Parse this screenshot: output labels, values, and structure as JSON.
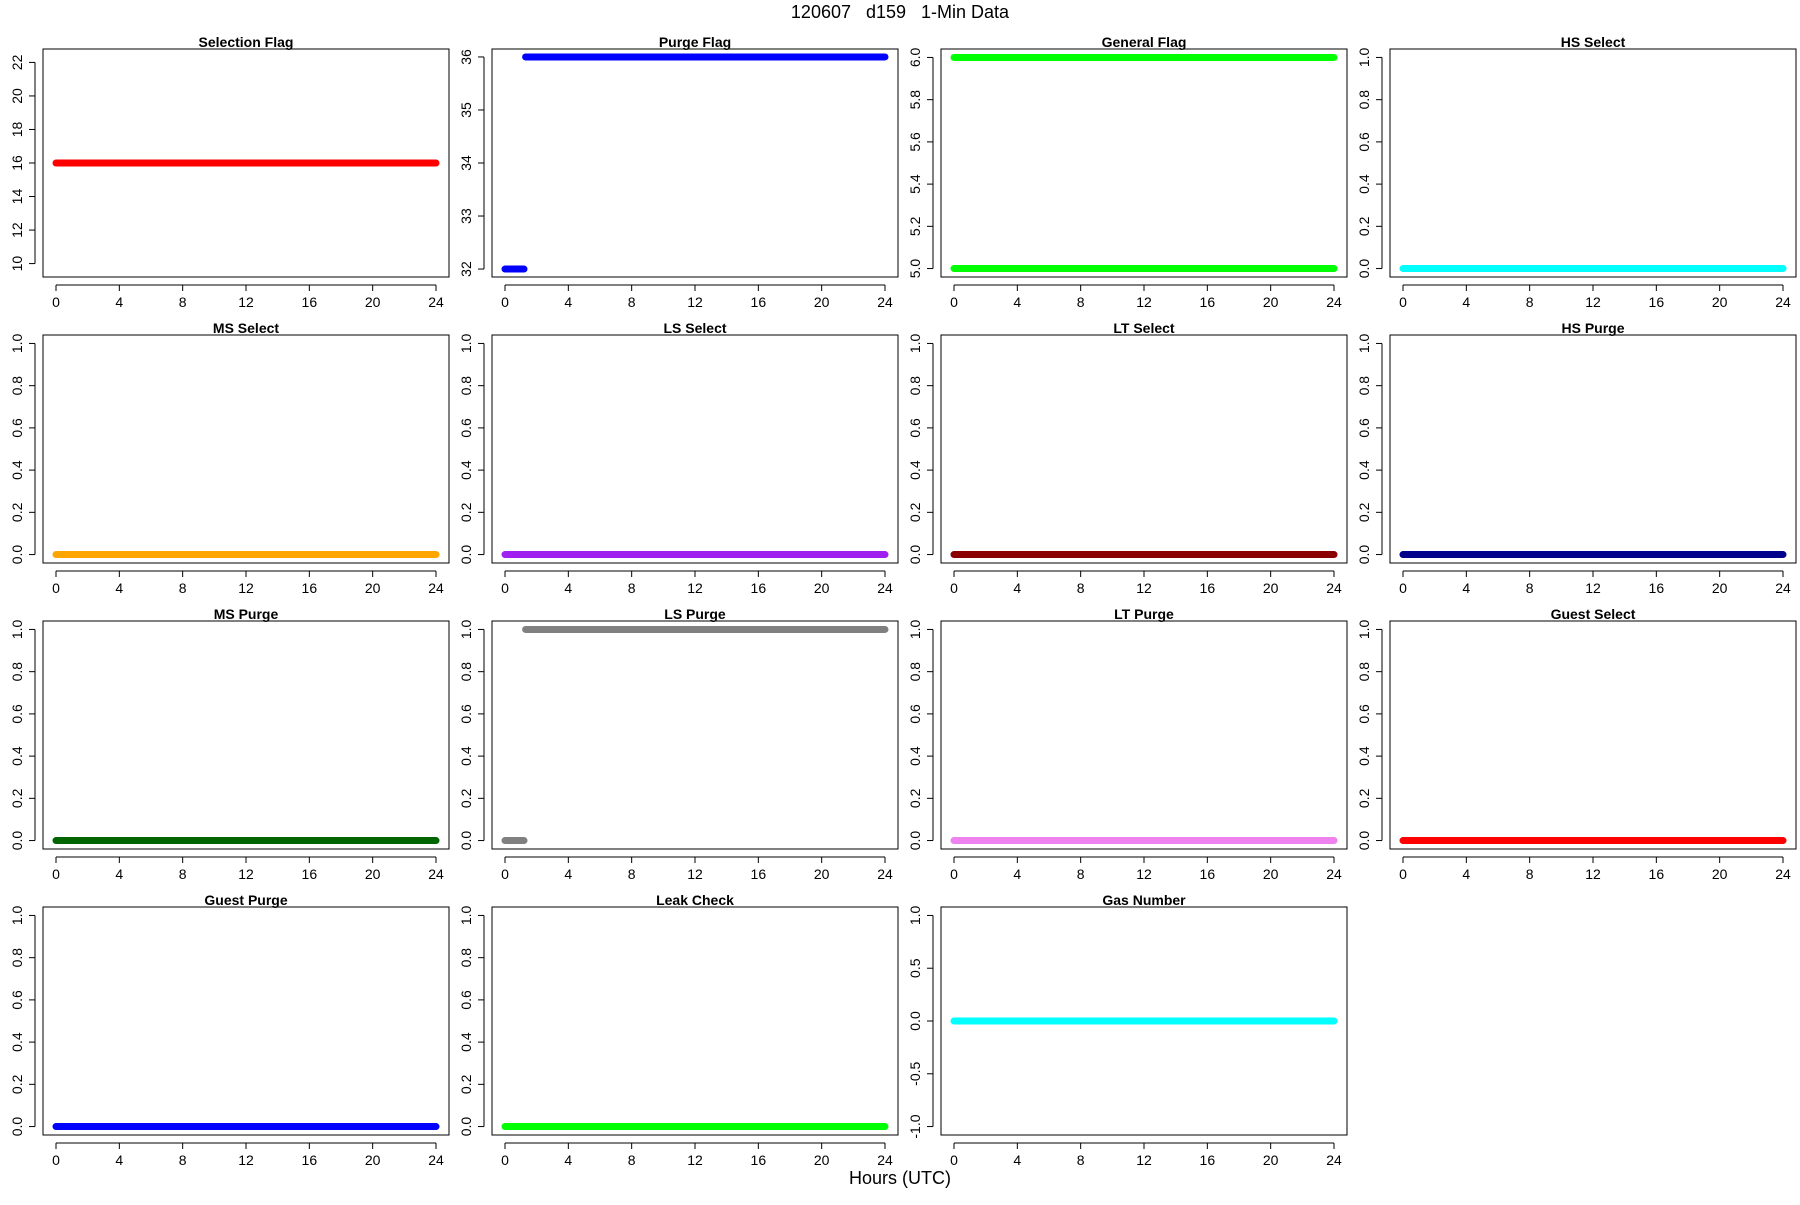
{
  "figure": {
    "title": "120607   d159   1-Min Data",
    "xlabel": "Hours (UTC)"
  },
  "chart_data": [
    {
      "type": "scatter",
      "title": "Selection Flag",
      "color": "#ff0000",
      "xlim": [
        0,
        24
      ],
      "ylim": [
        9.2,
        22.8
      ],
      "xticks": [
        0,
        4,
        8,
        12,
        16,
        20,
        24
      ],
      "yticks": [
        10,
        12,
        14,
        16,
        18,
        20,
        22
      ],
      "segments": [
        {
          "x": [
            0,
            24
          ],
          "y": 16
        }
      ]
    },
    {
      "type": "scatter",
      "title": "Purge Flag",
      "color": "#0000ff",
      "xlim": [
        0,
        24
      ],
      "ylim": [
        31.85,
        36.15
      ],
      "xticks": [
        0,
        4,
        8,
        12,
        16,
        20,
        24
      ],
      "yticks": [
        32,
        33,
        34,
        35,
        36
      ],
      "segments": [
        {
          "x": [
            0,
            1.2
          ],
          "y": 32
        },
        {
          "x": [
            1.3,
            24
          ],
          "y": 36
        }
      ]
    },
    {
      "type": "scatter",
      "title": "General Flag",
      "color": "#00ff00",
      "xlim": [
        0,
        24
      ],
      "ylim": [
        4.96,
        6.04
      ],
      "xticks": [
        0,
        4,
        8,
        12,
        16,
        20,
        24
      ],
      "yticks": [
        5.0,
        5.2,
        5.4,
        5.6,
        5.8,
        6.0
      ],
      "ytick_labels": [
        "5.0",
        "5.2",
        "5.4",
        "5.6",
        "5.8",
        "6.0"
      ],
      "segments": [
        {
          "x": [
            0,
            24
          ],
          "y": 5
        },
        {
          "x": [
            0,
            24
          ],
          "y": 6
        }
      ]
    },
    {
      "type": "scatter",
      "title": "HS Select",
      "color": "#00ffff",
      "xlim": [
        0,
        24
      ],
      "ylim": [
        -0.04,
        1.04
      ],
      "xticks": [
        0,
        4,
        8,
        12,
        16,
        20,
        24
      ],
      "yticks": [
        0,
        0.2,
        0.4,
        0.6,
        0.8,
        1.0
      ],
      "ytick_labels": [
        "0.0",
        "0.2",
        "0.4",
        "0.6",
        "0.8",
        "1.0"
      ],
      "segments": [
        {
          "x": [
            0,
            24
          ],
          "y": 0
        }
      ]
    },
    {
      "type": "scatter",
      "title": "MS Select",
      "color": "#ffa500",
      "xlim": [
        0,
        24
      ],
      "ylim": [
        -0.04,
        1.04
      ],
      "xticks": [
        0,
        4,
        8,
        12,
        16,
        20,
        24
      ],
      "yticks": [
        0,
        0.2,
        0.4,
        0.6,
        0.8,
        1.0
      ],
      "ytick_labels": [
        "0.0",
        "0.2",
        "0.4",
        "0.6",
        "0.8",
        "1.0"
      ],
      "segments": [
        {
          "x": [
            0,
            24
          ],
          "y": 0
        }
      ]
    },
    {
      "type": "scatter",
      "title": "LS Select",
      "color": "#a020f0",
      "xlim": [
        0,
        24
      ],
      "ylim": [
        -0.04,
        1.04
      ],
      "xticks": [
        0,
        4,
        8,
        12,
        16,
        20,
        24
      ],
      "yticks": [
        0,
        0.2,
        0.4,
        0.6,
        0.8,
        1.0
      ],
      "ytick_labels": [
        "0.0",
        "0.2",
        "0.4",
        "0.6",
        "0.8",
        "1.0"
      ],
      "segments": [
        {
          "x": [
            0,
            24
          ],
          "y": 0
        }
      ]
    },
    {
      "type": "scatter",
      "title": "LT Select",
      "color": "#8b0000",
      "xlim": [
        0,
        24
      ],
      "ylim": [
        -0.04,
        1.04
      ],
      "xticks": [
        0,
        4,
        8,
        12,
        16,
        20,
        24
      ],
      "yticks": [
        0,
        0.2,
        0.4,
        0.6,
        0.8,
        1.0
      ],
      "ytick_labels": [
        "0.0",
        "0.2",
        "0.4",
        "0.6",
        "0.8",
        "1.0"
      ],
      "segments": [
        {
          "x": [
            0,
            24
          ],
          "y": 0
        }
      ]
    },
    {
      "type": "scatter",
      "title": "HS Purge",
      "color": "#00008b",
      "xlim": [
        0,
        24
      ],
      "ylim": [
        -0.04,
        1.04
      ],
      "xticks": [
        0,
        4,
        8,
        12,
        16,
        20,
        24
      ],
      "yticks": [
        0,
        0.2,
        0.4,
        0.6,
        0.8,
        1.0
      ],
      "ytick_labels": [
        "0.0",
        "0.2",
        "0.4",
        "0.6",
        "0.8",
        "1.0"
      ],
      "segments": [
        {
          "x": [
            0,
            24
          ],
          "y": 0
        }
      ]
    },
    {
      "type": "scatter",
      "title": "MS Purge",
      "color": "#006400",
      "xlim": [
        0,
        24
      ],
      "ylim": [
        -0.04,
        1.04
      ],
      "xticks": [
        0,
        4,
        8,
        12,
        16,
        20,
        24
      ],
      "yticks": [
        0,
        0.2,
        0.4,
        0.6,
        0.8,
        1.0
      ],
      "ytick_labels": [
        "0.0",
        "0.2",
        "0.4",
        "0.6",
        "0.8",
        "1.0"
      ],
      "segments": [
        {
          "x": [
            0,
            24
          ],
          "y": 0
        }
      ]
    },
    {
      "type": "scatter",
      "title": "LS Purge",
      "color": "#808080",
      "xlim": [
        0,
        24
      ],
      "ylim": [
        -0.04,
        1.04
      ],
      "xticks": [
        0,
        4,
        8,
        12,
        16,
        20,
        24
      ],
      "yticks": [
        0,
        0.2,
        0.4,
        0.6,
        0.8,
        1.0
      ],
      "ytick_labels": [
        "0.0",
        "0.2",
        "0.4",
        "0.6",
        "0.8",
        "1.0"
      ],
      "segments": [
        {
          "x": [
            0,
            1.2
          ],
          "y": 0
        },
        {
          "x": [
            1.3,
            24
          ],
          "y": 1
        }
      ]
    },
    {
      "type": "scatter",
      "title": "LT Purge",
      "color": "#ee82ee",
      "xlim": [
        0,
        24
      ],
      "ylim": [
        -0.04,
        1.04
      ],
      "xticks": [
        0,
        4,
        8,
        12,
        16,
        20,
        24
      ],
      "yticks": [
        0,
        0.2,
        0.4,
        0.6,
        0.8,
        1.0
      ],
      "ytick_labels": [
        "0.0",
        "0.2",
        "0.4",
        "0.6",
        "0.8",
        "1.0"
      ],
      "segments": [
        {
          "x": [
            0,
            24
          ],
          "y": 0
        }
      ]
    },
    {
      "type": "scatter",
      "title": "Guest Select",
      "color": "#ff0000",
      "xlim": [
        0,
        24
      ],
      "ylim": [
        -0.04,
        1.04
      ],
      "xticks": [
        0,
        4,
        8,
        12,
        16,
        20,
        24
      ],
      "yticks": [
        0,
        0.2,
        0.4,
        0.6,
        0.8,
        1.0
      ],
      "ytick_labels": [
        "0.0",
        "0.2",
        "0.4",
        "0.6",
        "0.8",
        "1.0"
      ],
      "segments": [
        {
          "x": [
            0,
            24
          ],
          "y": 0
        }
      ]
    },
    {
      "type": "scatter",
      "title": "Guest Purge",
      "color": "#0000ff",
      "xlim": [
        0,
        24
      ],
      "ylim": [
        -0.04,
        1.04
      ],
      "xticks": [
        0,
        4,
        8,
        12,
        16,
        20,
        24
      ],
      "yticks": [
        0,
        0.2,
        0.4,
        0.6,
        0.8,
        1.0
      ],
      "ytick_labels": [
        "0.0",
        "0.2",
        "0.4",
        "0.6",
        "0.8",
        "1.0"
      ],
      "segments": [
        {
          "x": [
            0,
            24
          ],
          "y": 0
        }
      ]
    },
    {
      "type": "scatter",
      "title": "Leak Check",
      "color": "#00ff00",
      "xlim": [
        0,
        24
      ],
      "ylim": [
        -0.04,
        1.04
      ],
      "xticks": [
        0,
        4,
        8,
        12,
        16,
        20,
        24
      ],
      "yticks": [
        0,
        0.2,
        0.4,
        0.6,
        0.8,
        1.0
      ],
      "ytick_labels": [
        "0.0",
        "0.2",
        "0.4",
        "0.6",
        "0.8",
        "1.0"
      ],
      "segments": [
        {
          "x": [
            0,
            24
          ],
          "y": 0
        }
      ]
    },
    {
      "type": "scatter",
      "title": "Gas Number",
      "color": "#00ffff",
      "xlim": [
        0,
        24
      ],
      "ylim": [
        -1.08,
        1.08
      ],
      "xticks": [
        0,
        4,
        8,
        12,
        16,
        20,
        24
      ],
      "yticks": [
        -1,
        -0.5,
        0,
        0.5,
        1
      ],
      "ytick_labels": [
        "-1.0",
        "-0.5",
        "0.0",
        "0.5",
        "1.0"
      ],
      "segments": [
        {
          "x": [
            0,
            24
          ],
          "y": 0
        }
      ]
    }
  ]
}
